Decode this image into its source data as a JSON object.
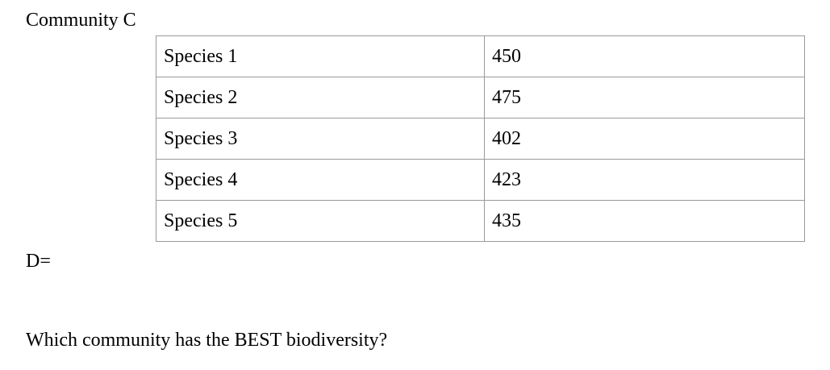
{
  "heading": "Community C",
  "table": {
    "rows": [
      {
        "species": "Species 1",
        "count": "450"
      },
      {
        "species": "Species 2",
        "count": "475"
      },
      {
        "species": "Species 3",
        "count": "402"
      },
      {
        "species": "Species 4",
        "count": "423"
      },
      {
        "species": "Species 5",
        "count": "435"
      }
    ]
  },
  "d_label": "D=",
  "question": "Which community has the BEST biodiversity?"
}
